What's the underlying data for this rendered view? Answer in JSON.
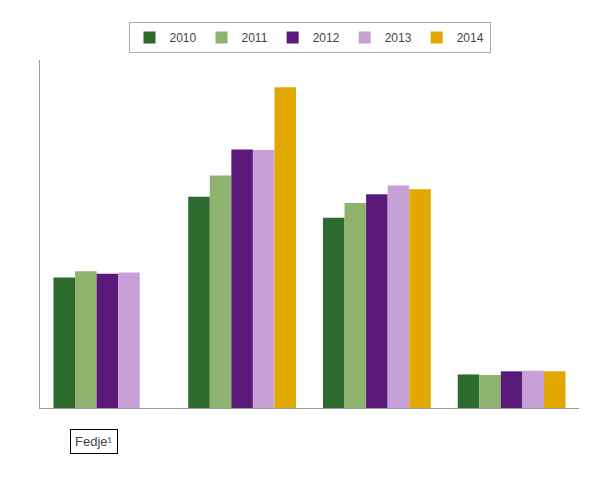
{
  "chart_data": {
    "type": "bar",
    "categories": [
      null,
      null,
      null,
      null
    ],
    "series": [
      {
        "name": "2010",
        "color": "#2d6a2d",
        "values": [
          1050,
          1700,
          1530,
          270
        ]
      },
      {
        "name": "2011",
        "color": "#8db36e",
        "values": [
          1100,
          1870,
          1650,
          265
        ]
      },
      {
        "name": "2012",
        "color": "#5b1a7a",
        "values": [
          1080,
          2080,
          1720,
          295
        ]
      },
      {
        "name": "2013",
        "color": "#c8a0d8",
        "values": [
          1090,
          2075,
          1790,
          300
        ]
      },
      {
        "name": "2014",
        "color": "#e0a800",
        "values": [
          0,
          2580,
          1760,
          295
        ]
      }
    ],
    "ylim": [
      0,
      2800
    ],
    "yticks": [],
    "grid": false,
    "tick_labels": false,
    "legend": "top",
    "annotations": [
      "Fedje¹"
    ]
  }
}
